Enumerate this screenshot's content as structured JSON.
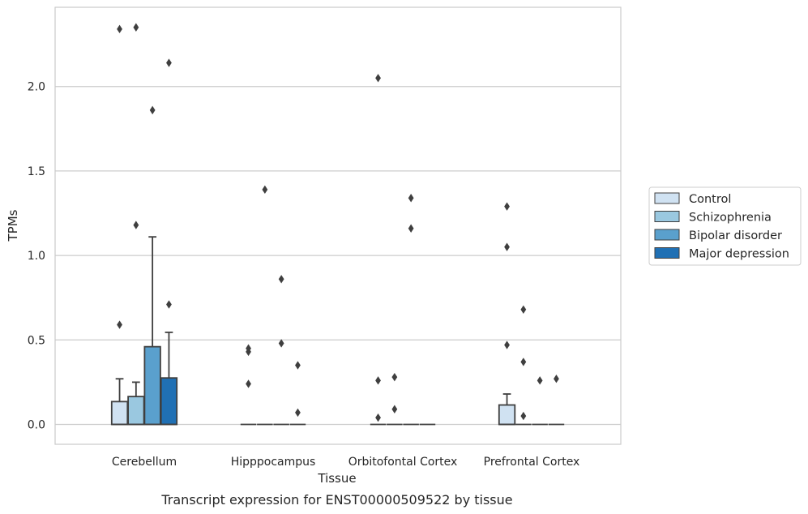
{
  "chart_data": {
    "type": "box",
    "xlabel": "Tissue",
    "ylabel": "TPMs",
    "caption": "Transcript expression for ENST00000509522 by tissue",
    "ylim": [
      -0.115,
      2.465
    ],
    "yticks": [
      0.0,
      0.5,
      1.0,
      1.5,
      2.0
    ],
    "ytick_labels": [
      "0.0",
      "0.5",
      "1.0",
      "1.5",
      "2.0"
    ],
    "grid": "horizontal",
    "legend_position": "right",
    "categories": [
      "Cerebellum",
      "Hipppocampus",
      "Orbitofontal Cortex",
      "Prefrontal Cortex"
    ],
    "series": [
      {
        "name": "Control",
        "color": "#d0e2f2",
        "boxes": [
          {
            "q1": 0.0,
            "median": 0.0,
            "q3": 0.135,
            "whisker_low": 0.0,
            "whisker_high": 0.27,
            "outliers": [
              0.59,
              2.34
            ]
          },
          {
            "q1": 0.0,
            "median": 0.0,
            "q3": 0.0,
            "whisker_low": 0.0,
            "whisker_high": 0.0,
            "outliers": [
              0.24,
              0.43,
              0.45
            ]
          },
          {
            "q1": 0.0,
            "median": 0.0,
            "q3": 0.0,
            "whisker_low": 0.0,
            "whisker_high": 0.0,
            "outliers": [
              0.04,
              0.26,
              2.05
            ]
          },
          {
            "q1": 0.0,
            "median": 0.0,
            "q3": 0.115,
            "whisker_low": 0.0,
            "whisker_high": 0.18,
            "outliers": [
              0.47,
              1.05,
              1.29
            ]
          }
        ]
      },
      {
        "name": "Schizophrenia",
        "color": "#9ac8e0",
        "boxes": [
          {
            "q1": 0.0,
            "median": 0.0,
            "q3": 0.165,
            "whisker_low": 0.0,
            "whisker_high": 0.25,
            "outliers": [
              1.18,
              2.35
            ]
          },
          {
            "q1": 0.0,
            "median": 0.0,
            "q3": 0.0,
            "whisker_low": 0.0,
            "whisker_high": 0.0,
            "outliers": [
              1.39
            ]
          },
          {
            "q1": 0.0,
            "median": 0.0,
            "q3": 0.0,
            "whisker_low": 0.0,
            "whisker_high": 0.0,
            "outliers": [
              0.28,
              0.09
            ]
          },
          {
            "q1": 0.0,
            "median": 0.0,
            "q3": 0.0,
            "whisker_low": 0.0,
            "whisker_high": 0.0,
            "outliers": [
              0.05,
              0.37,
              0.68
            ]
          }
        ]
      },
      {
        "name": "Bipolar disorder",
        "color": "#5aa0cd",
        "boxes": [
          {
            "q1": 0.0,
            "median": 0.0,
            "q3": 0.46,
            "whisker_low": 0.0,
            "whisker_high": 1.11,
            "outliers": [
              1.86
            ]
          },
          {
            "q1": 0.0,
            "median": 0.0,
            "q3": 0.0,
            "whisker_low": 0.0,
            "whisker_high": 0.0,
            "outliers": [
              0.48,
              0.86
            ]
          },
          {
            "q1": 0.0,
            "median": 0.0,
            "q3": 0.0,
            "whisker_low": 0.0,
            "whisker_high": 0.0,
            "outliers": [
              1.16,
              1.34
            ]
          },
          {
            "q1": 0.0,
            "median": 0.0,
            "q3": 0.0,
            "whisker_low": 0.0,
            "whisker_high": 0.0,
            "outliers": [
              0.26
            ]
          }
        ]
      },
      {
        "name": "Major depression",
        "color": "#2070b4",
        "boxes": [
          {
            "q1": 0.0,
            "median": 0.0,
            "q3": 0.275,
            "whisker_low": 0.0,
            "whisker_high": 0.545,
            "outliers": [
              0.71,
              2.14
            ]
          },
          {
            "q1": 0.0,
            "median": 0.0,
            "q3": 0.0,
            "whisker_low": 0.0,
            "whisker_high": 0.0,
            "outliers": [
              0.07,
              0.35
            ]
          },
          {
            "q1": 0.0,
            "median": 0.0,
            "q3": 0.0,
            "whisker_low": 0.0,
            "whisker_high": 0.0,
            "outliers": []
          },
          {
            "q1": 0.0,
            "median": 0.0,
            "q3": 0.0,
            "whisker_low": 0.0,
            "whisker_high": 0.0,
            "outliers": [
              0.27
            ]
          }
        ]
      }
    ]
  }
}
